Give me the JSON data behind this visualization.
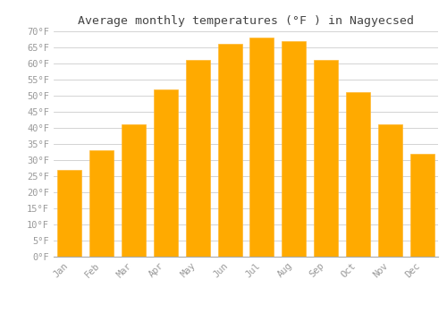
{
  "title": "Average monthly temperatures (°F ) in Nagyecsed",
  "months": [
    "Jan",
    "Feb",
    "Mar",
    "Apr",
    "May",
    "Jun",
    "Jul",
    "Aug",
    "Sep",
    "Oct",
    "Nov",
    "Dec"
  ],
  "values": [
    27,
    33,
    41,
    52,
    61,
    66,
    68,
    67,
    61,
    51,
    41,
    32
  ],
  "bar_color": "#FFAA00",
  "bar_edge_color": "#FFB830",
  "background_color": "#ffffff",
  "grid_color": "#cccccc",
  "ylim": [
    0,
    70
  ],
  "title_fontsize": 9.5,
  "tick_fontsize": 7.5,
  "font_family": "monospace",
  "tick_color": "#999999",
  "title_color": "#444444"
}
